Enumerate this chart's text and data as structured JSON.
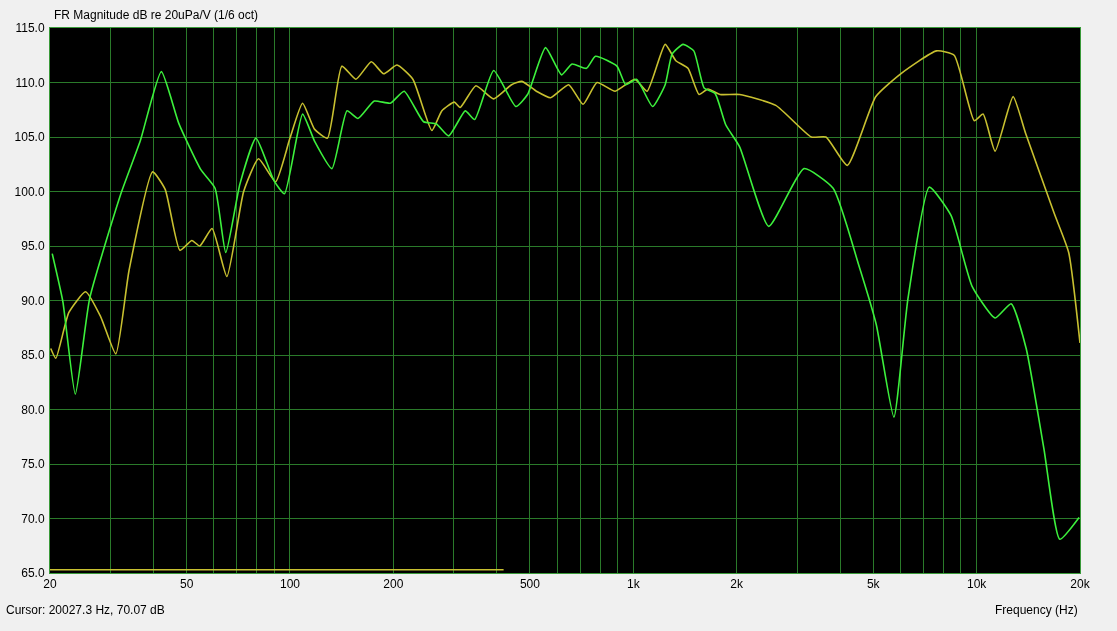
{
  "chart_data": {
    "type": "line",
    "title": "FR Magnitude dB re 20uPa/V (1/6 oct)",
    "xlabel": "Frequency (Hz)",
    "annotations": [
      "Cursor: 20027.3 Hz, 70.07 dB"
    ],
    "log": "x",
    "grid": true,
    "marker": "none",
    "line_style": "solid",
    "xlim": [
      20,
      20000
    ],
    "ylim": [
      65,
      115
    ],
    "xticks": [
      {
        "value": 20,
        "label": "20"
      },
      {
        "value": 30,
        "label": null
      },
      {
        "value": 40,
        "label": null
      },
      {
        "value": 50,
        "label": "50"
      },
      {
        "value": 60,
        "label": null
      },
      {
        "value": 70,
        "label": null
      },
      {
        "value": 80,
        "label": null
      },
      {
        "value": 90,
        "label": null
      },
      {
        "value": 100,
        "label": "100"
      },
      {
        "value": 200,
        "label": "200"
      },
      {
        "value": 300,
        "label": null
      },
      {
        "value": 400,
        "label": null
      },
      {
        "value": 500,
        "label": "500"
      },
      {
        "value": 600,
        "label": null
      },
      {
        "value": 700,
        "label": null
      },
      {
        "value": 800,
        "label": null
      },
      {
        "value": 900,
        "label": null
      },
      {
        "value": 1000,
        "label": "1k"
      },
      {
        "value": 2000,
        "label": "2k"
      },
      {
        "value": 3000,
        "label": null
      },
      {
        "value": 4000,
        "label": null
      },
      {
        "value": 5000,
        "label": "5k"
      },
      {
        "value": 6000,
        "label": null
      },
      {
        "value": 7000,
        "label": null
      },
      {
        "value": 8000,
        "label": null
      },
      {
        "value": 9000,
        "label": null
      },
      {
        "value": 10000,
        "label": "10k"
      },
      {
        "value": 20000,
        "label": "20k"
      }
    ],
    "yticks": [
      {
        "value": 65,
        "label": "65.0"
      },
      {
        "value": 70,
        "label": "70.0"
      },
      {
        "value": 75,
        "label": "75.0"
      },
      {
        "value": 80,
        "label": "80.0"
      },
      {
        "value": 85,
        "label": "85.0"
      },
      {
        "value": 90,
        "label": "90.0"
      },
      {
        "value": 95,
        "label": "95.0"
      },
      {
        "value": 100,
        "label": "100.0"
      },
      {
        "value": 105,
        "label": "105.0"
      },
      {
        "value": 110,
        "label": "110.0"
      },
      {
        "value": 115,
        "label": "115.0"
      }
    ],
    "series": [
      {
        "color": "#c8c030",
        "x": [
          20.1,
          20.8,
          22.7,
          25.4,
          28.1,
          31.1,
          34,
          39.8,
          43.3,
          47.8,
          51.8,
          54.6,
          59.3,
          65.5,
          73.3,
          81,
          90.8,
          100,
          108.8,
          118,
          128.6,
          141.6,
          155.6,
          172.6,
          187.4,
          205,
          228,
          259,
          277,
          301,
          313,
          348,
          392,
          442,
          474,
          522,
          574,
          648,
          714,
          784,
          885,
          1010,
          1097,
          1238,
          1330,
          1443,
          1554,
          1650,
          1790,
          2040,
          2600,
          3300,
          3640,
          4200,
          5080,
          6010,
          7640,
          8600,
          9840,
          10440,
          11320,
          12770,
          13900,
          16820,
          18540,
          20000
        ],
        "values": [
          85.6,
          84.7,
          88.9,
          90.8,
          88.5,
          85.1,
          92.8,
          101.8,
          100.2,
          94.6,
          95.5,
          95,
          96.6,
          92.2,
          100,
          103,
          100.9,
          104.9,
          108.1,
          105.7,
          104.9,
          111.5,
          110.3,
          111.9,
          110.8,
          111.6,
          110.3,
          105.6,
          107.4,
          108.2,
          107.7,
          109.7,
          108.5,
          109.8,
          110.1,
          109.2,
          108.6,
          109.8,
          108,
          110,
          109.2,
          110.3,
          109.2,
          113.5,
          112,
          111.3,
          108.9,
          109.4,
          108.9,
          108.9,
          107.9,
          105,
          105,
          102.4,
          108.7,
          110.8,
          112.9,
          112.5,
          106.5,
          107.1,
          103.7,
          108.7,
          105.3,
          98,
          94.4,
          86.1
        ]
      },
      {
        "color": "#3cf03c",
        "x": [
          20.3,
          21.8,
          23.7,
          26.1,
          32.1,
          36.6,
          42.2,
          47.5,
          55,
          60.5,
          65,
          71.5,
          79.6,
          89.8,
          96.4,
          108.8,
          118,
          132.5,
          146.6,
          157.8,
          176,
          196,
          215,
          245,
          267,
          290,
          324,
          345,
          392,
          455,
          492,
          555,
          618,
          663,
          730,
          776,
          896,
          950,
          1022,
          1138,
          1238,
          1297,
          1396,
          1500,
          1608,
          1730,
          1860,
          2040,
          2480,
          3140,
          3820,
          4520,
          5100,
          5740,
          6310,
          7280,
          8420,
          9700,
          11320,
          12600,
          13940,
          15700,
          17460,
          19880
        ],
        "values": [
          94.3,
          89.9,
          81.4,
          90.2,
          99.7,
          104.6,
          111,
          106.2,
          102,
          100.3,
          94.4,
          100.7,
          104.9,
          101,
          99.8,
          107.1,
          104.6,
          102.1,
          107.4,
          106.7,
          108.3,
          108.1,
          109.2,
          106.4,
          106.2,
          105.1,
          107.4,
          106.6,
          111.1,
          107.8,
          108.9,
          113.2,
          110.7,
          111.7,
          111.3,
          112.4,
          111.5,
          109.8,
          110.3,
          107.8,
          109.8,
          112.6,
          113.5,
          112.9,
          109.5,
          109,
          106.1,
          104.1,
          96.8,
          102.1,
          100.3,
          93.4,
          87.8,
          79.3,
          90.2,
          100.4,
          97.8,
          91.3,
          88.4,
          89.7,
          85.6,
          76.4,
          68.1,
          70.1
        ]
      },
      {
        "color": "#c8c030",
        "x": [
          20,
          419
        ],
        "values": [
          65.3,
          65.3
        ]
      }
    ]
  }
}
